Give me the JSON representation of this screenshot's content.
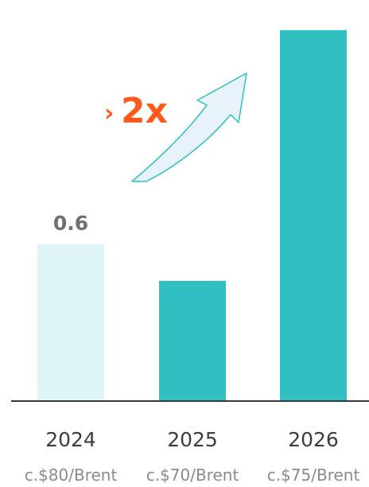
{
  "chart_data": {
    "type": "bar",
    "categories": [
      "2024",
      "2025",
      "2026"
    ],
    "sublabels": [
      "c.$80/Brent",
      "c.$70/Brent",
      "c.$75/Brent"
    ],
    "values": [
      0.6,
      0.46,
      1.42
    ],
    "data_labels": [
      "0.6",
      "",
      ""
    ],
    "bar_colors": [
      "#dff4f6",
      "#31bfc1",
      "#31bfc1"
    ],
    "ylim": [
      0,
      1.45
    ],
    "grid": false,
    "annotation": {
      "prefix": "›",
      "text": "2x",
      "color": "#ff5a1e",
      "arrow_fill": "#e8f2fb",
      "arrow_stroke": "#31bfc1"
    },
    "axis_color": "#3a3a3a"
  }
}
